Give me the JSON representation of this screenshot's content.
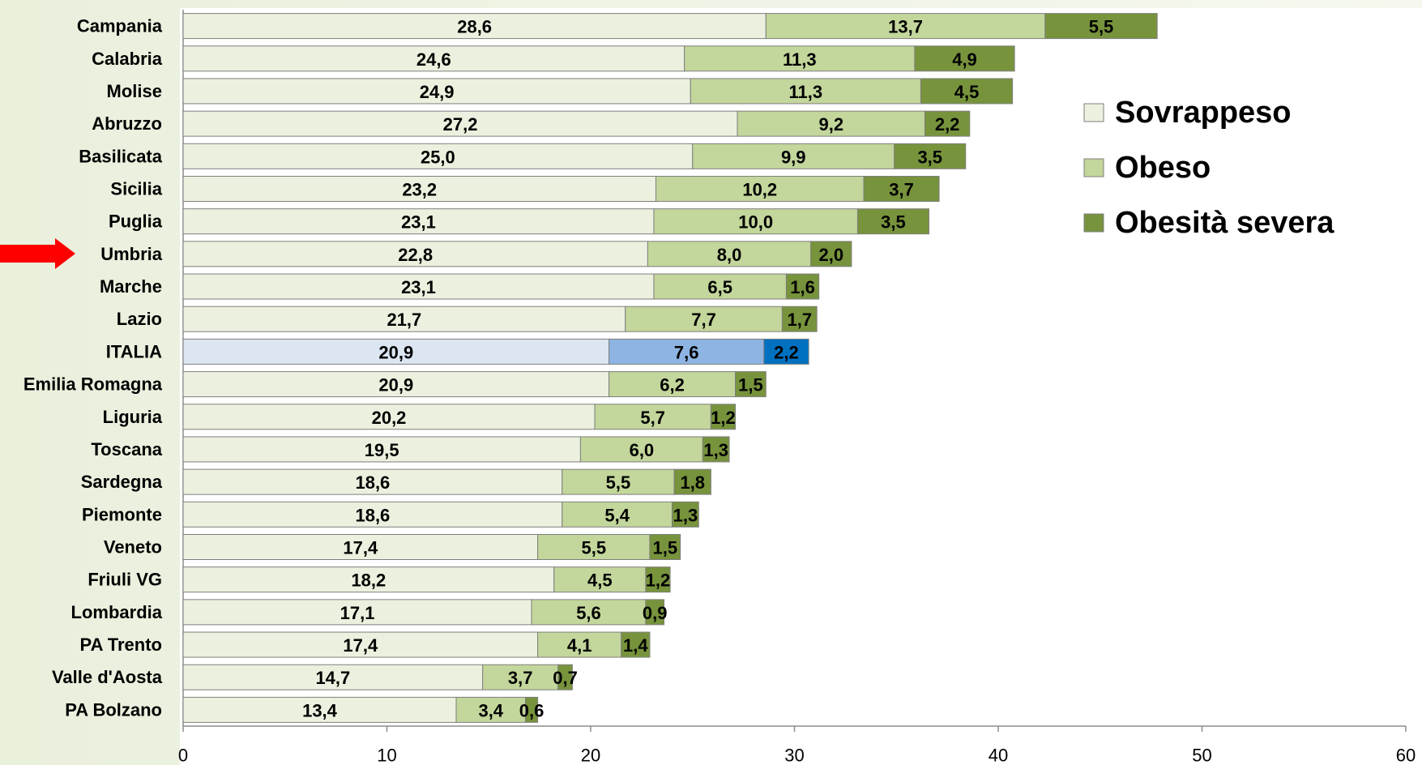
{
  "chart_data": {
    "type": "stacked_barh",
    "categories": [
      "Campania",
      "Calabria",
      "Molise",
      "Abruzzo",
      "Basilicata",
      "Sicilia",
      "Puglia",
      "Umbria",
      "Marche",
      "Lazio",
      "ITALIA",
      "Emilia Romagna",
      "Liguria",
      "Toscana",
      "Sardegna",
      "Piemonte",
      "Veneto",
      "Friuli VG",
      "Lombardia",
      "PA Trento",
      "Valle d'Aosta",
      "PA Bolzano"
    ],
    "series": [
      {
        "name": "Sovrappeso",
        "color": "#ebf1de",
        "colors": [
          "#ebf1de",
          "#ebf1de",
          "#ebf1de",
          "#ebf1de",
          "#ebf1de",
          "#ebf1de",
          "#ebf1de",
          "#ebf1de",
          "#ebf1de",
          "#ebf1de",
          "#dce6f2",
          "#ebf1de",
          "#ebf1de",
          "#ebf1de",
          "#ebf1de",
          "#ebf1de",
          "#ebf1de",
          "#ebf1de",
          "#ebf1de",
          "#ebf1de",
          "#ebf1de",
          "#ebf1de"
        ],
        "values": [
          28.6,
          24.6,
          24.9,
          27.2,
          25.0,
          23.2,
          23.1,
          22.8,
          23.1,
          21.7,
          20.9,
          20.9,
          20.2,
          19.5,
          18.6,
          18.6,
          17.4,
          18.2,
          17.1,
          17.4,
          14.7,
          13.4
        ],
        "value_labels": [
          "28,6",
          "24,6",
          "24,9",
          "27,2",
          "25,0",
          "23,2",
          "23,1",
          "22,8",
          "23,1",
          "21,7",
          "20,9",
          "20,9",
          "20,2",
          "19,5",
          "18,6",
          "18,6",
          "17,4",
          "18,2",
          "17,1",
          "17,4",
          "14,7",
          "13,4"
        ]
      },
      {
        "name": "Obeso",
        "color": "#c3d69b",
        "colors": [
          "#c3d69b",
          "#c3d69b",
          "#c3d69b",
          "#c3d69b",
          "#c3d69b",
          "#c3d69b",
          "#c3d69b",
          "#c3d69b",
          "#c3d69b",
          "#c3d69b",
          "#8eb4e3",
          "#c3d69b",
          "#c3d69b",
          "#c3d69b",
          "#c3d69b",
          "#c3d69b",
          "#c3d69b",
          "#c3d69b",
          "#c3d69b",
          "#c3d69b",
          "#c3d69b",
          "#c3d69b"
        ],
        "values": [
          13.7,
          11.3,
          11.3,
          9.2,
          9.9,
          10.2,
          10.0,
          8.0,
          6.5,
          7.7,
          7.6,
          6.2,
          5.7,
          6.0,
          5.5,
          5.4,
          5.5,
          4.5,
          5.6,
          4.1,
          3.7,
          3.4
        ],
        "value_labels": [
          "13,7",
          "11,3",
          "11,3",
          "9,2",
          "9,9",
          "10,2",
          "10,0",
          "8,0",
          "6,5",
          "7,7",
          "7,6",
          "6,2",
          "5,7",
          "6,0",
          "5,5",
          "5,4",
          "5,5",
          "4,5",
          "5,6",
          "4,1",
          "3,7",
          "3,4"
        ]
      },
      {
        "name": "Obesità severa",
        "color": "#77933c",
        "colors": [
          "#77933c",
          "#77933c",
          "#77933c",
          "#77933c",
          "#77933c",
          "#77933c",
          "#77933c",
          "#77933c",
          "#77933c",
          "#77933c",
          "#0070c0",
          "#77933c",
          "#77933c",
          "#77933c",
          "#77933c",
          "#77933c",
          "#77933c",
          "#77933c",
          "#77933c",
          "#77933c",
          "#77933c",
          "#77933c"
        ],
        "values": [
          5.5,
          4.9,
          4.5,
          2.2,
          3.5,
          3.7,
          3.5,
          2.0,
          1.6,
          1.7,
          2.2,
          1.5,
          1.2,
          1.3,
          1.8,
          1.3,
          1.5,
          1.2,
          0.9,
          1.4,
          0.7,
          0.6
        ],
        "value_labels": [
          "5,5",
          "4,9",
          "4,5",
          "2,2",
          "3,5",
          "3,7",
          "3,5",
          "2,0",
          "1,6",
          "1,7",
          "2,2",
          "1,5",
          "1,2",
          "1,3",
          "1,8",
          "1,3",
          "1,5",
          "1,2",
          "0,9",
          "1,4",
          "0,7",
          "0,6"
        ]
      }
    ],
    "xlim": [
      0,
      60
    ],
    "xticks": [
      0,
      10,
      20,
      30,
      40,
      50,
      60
    ],
    "grid": false,
    "legend": "upper right"
  }
}
